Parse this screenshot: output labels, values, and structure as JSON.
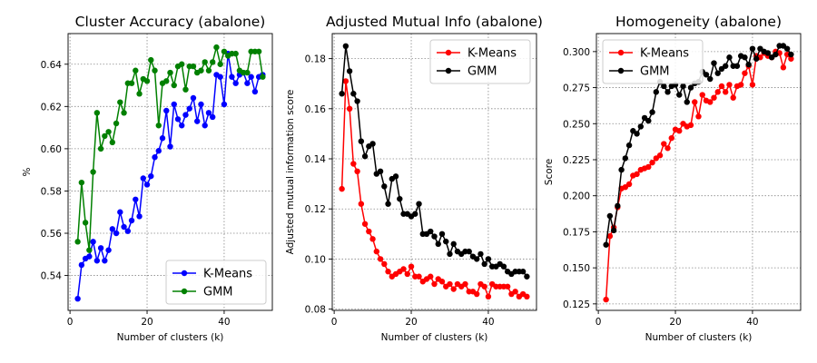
{
  "chart_data": [
    {
      "type": "line",
      "title": "Cluster Accuracy (abalone)",
      "xlabel": "Number of clusters (k)",
      "ylabel": "%",
      "xlim": [
        -0.5,
        52.5
      ],
      "ylim": [
        0.5235,
        0.6545
      ],
      "xticks": [
        0,
        20,
        40
      ],
      "yticks": [
        0.54,
        0.56,
        0.58,
        0.6,
        0.62,
        0.64
      ],
      "ytick_labels": [
        "0.54",
        "0.56",
        "0.58",
        "0.60",
        "0.62",
        "0.64"
      ],
      "grid": true,
      "legend": "bottom-right",
      "x": [
        2,
        3,
        4,
        5,
        6,
        7,
        8,
        9,
        10,
        11,
        12,
        13,
        14,
        15,
        16,
        17,
        18,
        19,
        20,
        21,
        22,
        23,
        24,
        25,
        26,
        27,
        28,
        29,
        30,
        31,
        32,
        33,
        34,
        35,
        36,
        37,
        38,
        39,
        40,
        41,
        42,
        43,
        44,
        45,
        46,
        47,
        48,
        49,
        50
      ],
      "series": [
        {
          "name": "K-Means",
          "color": "#0000ff",
          "values": [
            0.529,
            0.545,
            0.548,
            0.549,
            0.556,
            0.547,
            0.553,
            0.547,
            0.552,
            0.562,
            0.56,
            0.57,
            0.563,
            0.561,
            0.566,
            0.576,
            0.568,
            0.586,
            0.583,
            0.587,
            0.596,
            0.599,
            0.605,
            0.618,
            0.601,
            0.621,
            0.614,
            0.611,
            0.616,
            0.619,
            0.624,
            0.613,
            0.621,
            0.611,
            0.617,
            0.615,
            0.635,
            0.634,
            0.621,
            0.645,
            0.634,
            0.631,
            0.635,
            0.636,
            0.631,
            0.634,
            0.627,
            0.634,
            0.635
          ]
        },
        {
          "name": "GMM",
          "color": "#008000",
          "values": [
            0.556,
            0.584,
            0.565,
            0.552,
            0.589,
            0.617,
            0.6,
            0.606,
            0.608,
            0.603,
            0.612,
            0.622,
            0.617,
            0.631,
            0.631,
            0.637,
            0.626,
            0.633,
            0.632,
            0.642,
            0.637,
            0.611,
            0.631,
            0.632,
            0.636,
            0.63,
            0.639,
            0.64,
            0.628,
            0.639,
            0.639,
            0.636,
            0.637,
            0.641,
            0.637,
            0.641,
            0.648,
            0.64,
            0.646,
            0.644,
            0.645,
            0.645,
            0.637,
            0.636,
            0.636,
            0.646,
            0.646,
            0.646,
            0.634
          ]
        }
      ]
    },
    {
      "type": "line",
      "title": "Adjusted Mutual Info (abalone)",
      "xlabel": "Number of clusters (k)",
      "ylabel": "Adjusted mutual information score",
      "xlim": [
        -0.5,
        52.5
      ],
      "ylim": [
        0.0795,
        0.19
      ],
      "xticks": [
        0,
        20,
        40
      ],
      "yticks": [
        0.08,
        0.1,
        0.12,
        0.14,
        0.16,
        0.18
      ],
      "ytick_labels": [
        "0.08",
        "0.10",
        "0.12",
        "0.14",
        "0.16",
        "0.18"
      ],
      "grid": true,
      "legend": "top-right",
      "x": [
        2,
        3,
        4,
        5,
        6,
        7,
        8,
        9,
        10,
        11,
        12,
        13,
        14,
        15,
        16,
        17,
        18,
        19,
        20,
        21,
        22,
        23,
        24,
        25,
        26,
        27,
        28,
        29,
        30,
        31,
        32,
        33,
        34,
        35,
        36,
        37,
        38,
        39,
        40,
        41,
        42,
        43,
        44,
        45,
        46,
        47,
        48,
        49,
        50
      ],
      "series": [
        {
          "name": "K-Means",
          "color": "#ff0000",
          "values": [
            0.128,
            0.171,
            0.16,
            0.138,
            0.135,
            0.122,
            0.114,
            0.111,
            0.108,
            0.103,
            0.1,
            0.098,
            0.095,
            0.093,
            0.094,
            0.095,
            0.096,
            0.094,
            0.097,
            0.093,
            0.093,
            0.091,
            0.092,
            0.093,
            0.09,
            0.092,
            0.091,
            0.089,
            0.09,
            0.088,
            0.09,
            0.089,
            0.09,
            0.087,
            0.087,
            0.086,
            0.09,
            0.089,
            0.085,
            0.09,
            0.089,
            0.089,
            0.089,
            0.089,
            0.086,
            0.087,
            0.085,
            0.086,
            0.085
          ]
        },
        {
          "name": "GMM",
          "color": "#000000",
          "values": [
            0.166,
            0.185,
            0.175,
            0.166,
            0.163,
            0.147,
            0.141,
            0.145,
            0.146,
            0.134,
            0.135,
            0.129,
            0.122,
            0.132,
            0.133,
            0.124,
            0.118,
            0.118,
            0.117,
            0.118,
            0.122,
            0.11,
            0.11,
            0.111,
            0.109,
            0.106,
            0.11,
            0.107,
            0.102,
            0.106,
            0.103,
            0.102,
            0.103,
            0.103,
            0.101,
            0.1,
            0.102,
            0.098,
            0.1,
            0.097,
            0.097,
            0.098,
            0.097,
            0.095,
            0.094,
            0.095,
            0.095,
            0.095,
            0.093
          ]
        }
      ]
    },
    {
      "type": "line",
      "title": "Homogeneity (abalone)",
      "xlabel": "Number of clusters (k)",
      "ylabel": "Score",
      "xlim": [
        -0.5,
        52.5
      ],
      "ylim": [
        0.1205,
        0.3125
      ],
      "xticks": [
        0,
        20,
        40
      ],
      "yticks": [
        0.125,
        0.15,
        0.175,
        0.2,
        0.225,
        0.25,
        0.275,
        0.3
      ],
      "ytick_labels": [
        "0.125",
        "0.150",
        "0.175",
        "0.200",
        "0.225",
        "0.250",
        "0.275",
        "0.300"
      ],
      "grid": true,
      "legend": "top-left",
      "x": [
        2,
        3,
        4,
        5,
        6,
        7,
        8,
        9,
        10,
        11,
        12,
        13,
        14,
        15,
        16,
        17,
        18,
        19,
        20,
        21,
        22,
        23,
        24,
        25,
        26,
        27,
        28,
        29,
        30,
        31,
        32,
        33,
        34,
        35,
        36,
        37,
        38,
        39,
        40,
        41,
        42,
        43,
        44,
        45,
        46,
        47,
        48,
        49,
        50
      ],
      "series": [
        {
          "name": "K-Means",
          "color": "#ff0000",
          "values": [
            0.128,
            0.172,
            0.178,
            0.192,
            0.205,
            0.206,
            0.208,
            0.214,
            0.215,
            0.218,
            0.219,
            0.22,
            0.223,
            0.226,
            0.228,
            0.236,
            0.233,
            0.24,
            0.246,
            0.245,
            0.25,
            0.248,
            0.249,
            0.265,
            0.255,
            0.27,
            0.266,
            0.265,
            0.268,
            0.272,
            0.276,
            0.272,
            0.277,
            0.268,
            0.276,
            0.277,
            0.285,
            0.29,
            0.277,
            0.297,
            0.296,
            0.299,
            0.297,
            0.296,
            0.3,
            0.299,
            0.289,
            0.298,
            0.295
          ]
        },
        {
          "name": "GMM",
          "color": "#000000",
          "values": [
            0.166,
            0.186,
            0.176,
            0.193,
            0.218,
            0.226,
            0.235,
            0.245,
            0.243,
            0.248,
            0.254,
            0.252,
            0.258,
            0.272,
            0.279,
            0.276,
            0.272,
            0.276,
            0.277,
            0.27,
            0.276,
            0.265,
            0.275,
            0.278,
            0.279,
            0.286,
            0.284,
            0.281,
            0.292,
            0.285,
            0.288,
            0.29,
            0.296,
            0.29,
            0.29,
            0.297,
            0.296,
            0.291,
            0.302,
            0.295,
            0.302,
            0.3,
            0.299,
            0.296,
            0.298,
            0.304,
            0.304,
            0.302,
            0.298
          ]
        }
      ]
    }
  ]
}
